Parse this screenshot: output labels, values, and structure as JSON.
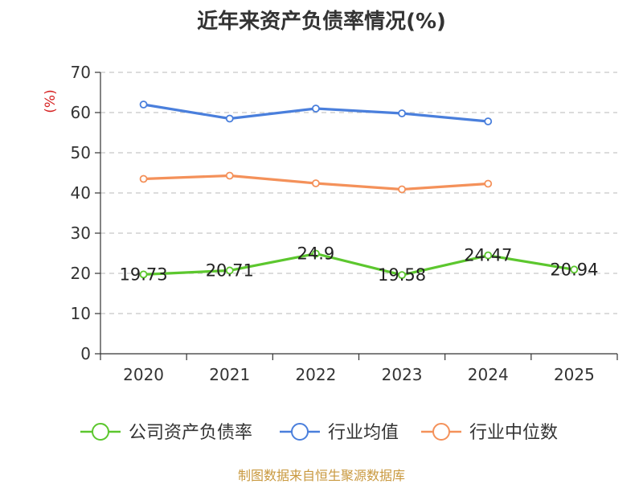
{
  "title": "近年来资产负债率情况(%)",
  "source": "制图数据来自恒生聚源数据库",
  "chart_data": {
    "type": "line",
    "title": "近年来资产负债率情况(%)",
    "ylabel": "(%)",
    "xlabel": "",
    "categories": [
      "2020",
      "2021",
      "2022",
      "2023",
      "2024",
      "2025"
    ],
    "ylim": [
      0,
      70
    ],
    "yticks": [
      0,
      10,
      20,
      30,
      40,
      50,
      60,
      70
    ],
    "grid": true,
    "legend_position": "bottom",
    "series": [
      {
        "name": "公司资产负债率",
        "color": "#5cc72e",
        "values": [
          19.73,
          20.71,
          24.9,
          19.58,
          24.47,
          20.94
        ],
        "labels": [
          "19.73",
          "20.71",
          "24.9",
          "19.58",
          "24.47",
          "20.94"
        ]
      },
      {
        "name": "行业均值",
        "color": "#4a7fdc",
        "values": [
          62.0,
          58.5,
          61.0,
          59.8,
          57.8,
          null
        ]
      },
      {
        "name": "行业中位数",
        "color": "#f4915a",
        "values": [
          43.5,
          44.3,
          42.4,
          40.9,
          42.3,
          null
        ]
      }
    ]
  }
}
